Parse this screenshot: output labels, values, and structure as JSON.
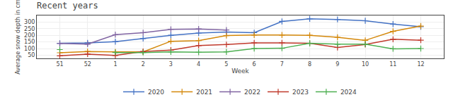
{
  "chart_data": {
    "type": "line",
    "title": "Recent years",
    "xlabel": "Week",
    "ylabel": "Average snow depth in cm",
    "categories": [
      "51",
      "52",
      "1",
      "2",
      "3",
      "4",
      "5",
      "6",
      "7",
      "8",
      "9",
      "10",
      "11",
      "12"
    ],
    "series": [
      {
        "name": "2020",
        "color": "#4472c4",
        "values": [
          140,
          143,
          152,
          175,
          200,
          217,
          225,
          220,
          305,
          325,
          320,
          310,
          285,
          265
        ]
      },
      {
        "name": "2021",
        "color": "#d4880a",
        "values": [
          68,
          78,
          75,
          75,
          155,
          160,
          198,
          202,
          202,
          200,
          185,
          162,
          230,
          270
        ]
      },
      {
        "name": "2022",
        "color": "#8064a2",
        "values": [
          138,
          133,
          205,
          220,
          245,
          248,
          240,
          null,
          null,
          null,
          null,
          null,
          null,
          null
        ]
      },
      {
        "name": "2023",
        "color": "#c0392b",
        "values": [
          45,
          58,
          48,
          78,
          88,
          122,
          130,
          143,
          143,
          140,
          108,
          130,
          170,
          163
        ]
      },
      {
        "name": "2024",
        "color": "#4caf50",
        "values": [
          92,
          null,
          70,
          70,
          75,
          72,
          75,
          100,
          102,
          140,
          133,
          133,
          98,
          100
        ]
      }
    ],
    "ylim": [
      25,
      350
    ],
    "yticks": [
      50,
      100,
      150,
      200,
      250,
      300
    ],
    "grid": true,
    "legend": "bottom",
    "marker": "plus"
  }
}
